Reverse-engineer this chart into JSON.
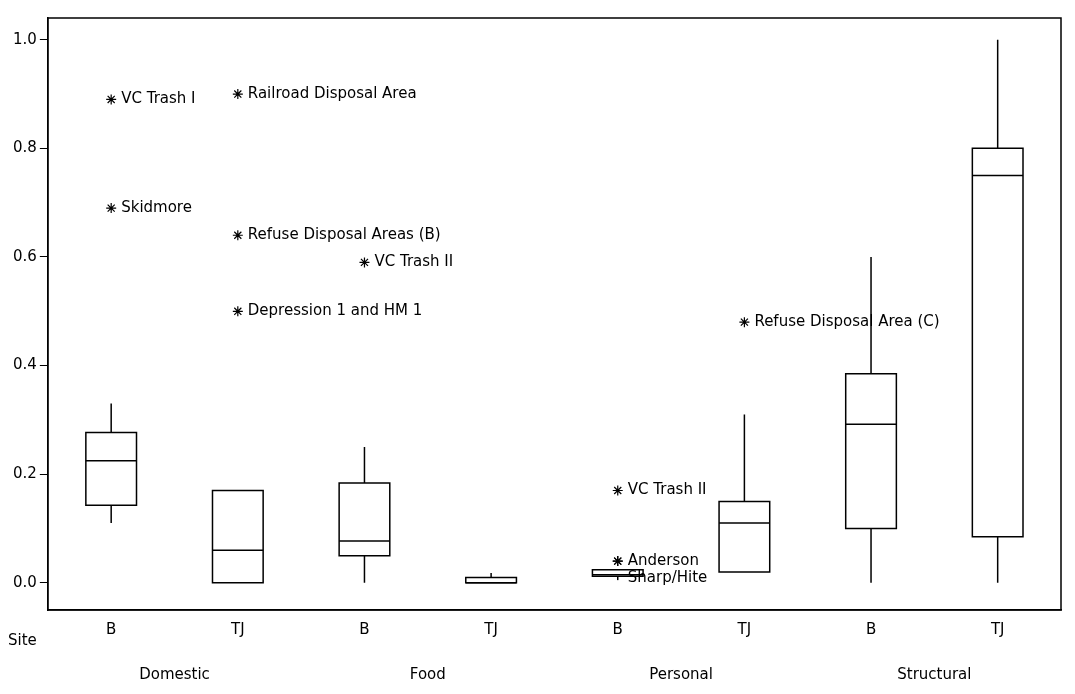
{
  "chart_data": {
    "type": "box",
    "xlabel": "Site",
    "categories": [
      "B",
      "TJ",
      "B",
      "TJ",
      "B",
      "TJ",
      "B",
      "TJ"
    ],
    "boxes": [
      {
        "low": 0.11,
        "q1": 0.143,
        "median": 0.225,
        "q3": 0.277,
        "high": 0.33,
        "outliers": [
          0.89,
          0.69
        ]
      },
      {
        "low": 0,
        "q1": 0,
        "median": 0.06,
        "q3": 0.17,
        "high": 0.17,
        "outliers": [
          0.9,
          0.64,
          0.5
        ]
      },
      {
        "low": 0,
        "q1": 0.05,
        "median": 0.077,
        "q3": 0.184,
        "high": 0.25,
        "outliers": [
          0.59
        ]
      },
      {
        "low": 0,
        "q1": 0,
        "median": 0,
        "q3": 0.01,
        "high": 0.018
      },
      {
        "low": 0.005,
        "q1": 0.012,
        "median": 0.015,
        "q3": 0.024,
        "high": 0.024,
        "outliers": [
          0.17,
          0.04,
          0.04
        ]
      },
      {
        "low": 0.02,
        "q1": 0.02,
        "median": 0.11,
        "q3": 0.15,
        "high": 0.31,
        "outliers": [
          0.48
        ]
      },
      {
        "low": 0,
        "q1": 0.1,
        "median": 0.292,
        "q3": 0.385,
        "high": 0.6
      },
      {
        "low": 0,
        "q1": 0.085,
        "median": 0.75,
        "q3": 0.8,
        "high": 1.0
      }
    ],
    "ylim": [
      -0.05,
      1.04
    ],
    "yticks": [
      {
        "value": 0,
        "label": "0.0"
      },
      {
        "value": 0.2,
        "label": "0.2"
      },
      {
        "value": 0.4,
        "label": "0.4"
      },
      {
        "value": 0.6,
        "label": "0.6"
      },
      {
        "value": 0.8,
        "label": "0.8"
      },
      {
        "value": 1,
        "label": "1.0"
      }
    ],
    "grid": false,
    "legend": false,
    "marker": "star",
    "annotations": [
      "Domestic",
      "Food",
      "Personal",
      "Structural",
      "VC Trash I",
      "Skidmore",
      "Railroad Disposal Area",
      "Refuse Disposal Areas (B)",
      "Depression 1 and HM 1",
      "VC Trash II",
      "VC Trash II",
      "Anderson",
      "Sharp/Hite",
      "Refuse Disposal Area (C)"
    ]
  }
}
